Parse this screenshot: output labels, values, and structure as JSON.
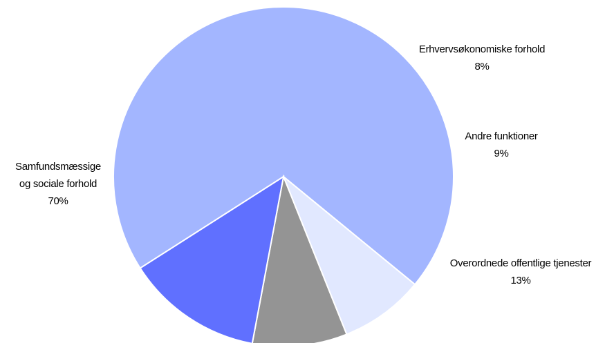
{
  "chart_data": {
    "type": "pie",
    "slices": [
      {
        "label_lines": [
          "Samfundsmæssige",
          "og sociale forhold"
        ],
        "label": "Samfundsmæssige og sociale forhold",
        "value": 70,
        "value_label": "70%",
        "color": "#a3b6ff"
      },
      {
        "label_lines": [
          "Erhvervsøkonomiske forhold"
        ],
        "label": "Erhvervsøkonomiske forhold",
        "value": 8,
        "value_label": "8%",
        "color": "#e1e8ff"
      },
      {
        "label_lines": [
          "Andre funktioner"
        ],
        "label": "Andre funktioner",
        "value": 9,
        "value_label": "9%",
        "color": "#949494"
      },
      {
        "label_lines": [
          "Overordnede offentlige tjenester"
        ],
        "label": "Overordnede offentlige tjenester",
        "value": 13,
        "value_label": "13%",
        "color": "#6070ff"
      }
    ]
  }
}
